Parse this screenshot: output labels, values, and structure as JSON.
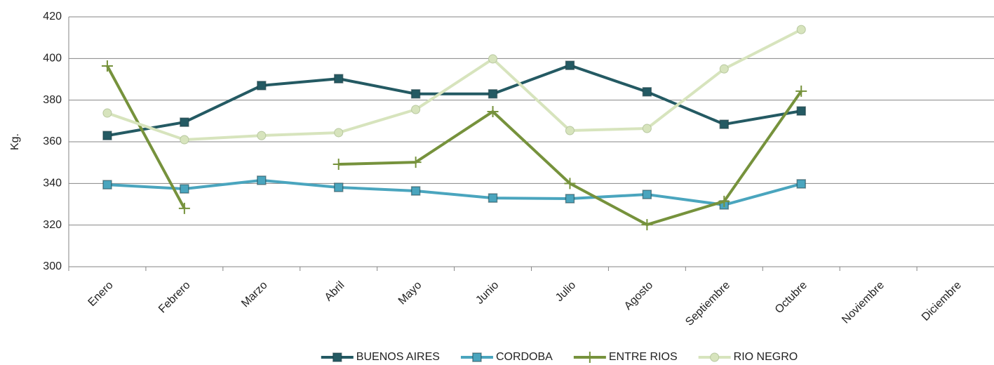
{
  "chart_data": {
    "type": "line",
    "ylabel": "Kg.",
    "categories": [
      "Enero",
      "Febrero",
      "Marzo",
      "Abril",
      "Mayo",
      "Junio",
      "Julio",
      "Agosto",
      "Septiembre",
      "Octubre",
      "Noviembre",
      "Diciembre"
    ],
    "series": [
      {
        "name": "BUENOS AIRES",
        "color": "#245a63",
        "marker": "square",
        "values": [
          363,
          369.4,
          387,
          390.3,
          383,
          383,
          396.7,
          384,
          368.4,
          374.8,
          null,
          null
        ]
      },
      {
        "name": "CORDOBA",
        "color": "#4aa5be",
        "marker": "square",
        "values": [
          339.4,
          337.4,
          341.5,
          338.1,
          336.4,
          333,
          332.7,
          334.7,
          329.7,
          339.8,
          null,
          null
        ]
      },
      {
        "name": "ENTRE RIOS",
        "color": "#76923c",
        "marker": "plus",
        "values": [
          396.4,
          328,
          null,
          349.2,
          350.2,
          374.5,
          340,
          320.2,
          331.4,
          384.3,
          null,
          null
        ]
      },
      {
        "name": "RIO NEGRO",
        "color": "#d7e4bd",
        "marker": "circle",
        "values": [
          373.8,
          361,
          363,
          364.4,
          375.5,
          399.8,
          365.4,
          366.4,
          395,
          413.9,
          null,
          null
        ]
      }
    ],
    "ylim": [
      300,
      420
    ],
    "yticks": [
      300,
      320,
      340,
      360,
      380,
      400,
      420
    ],
    "grid": true,
    "legend": "bottom"
  }
}
